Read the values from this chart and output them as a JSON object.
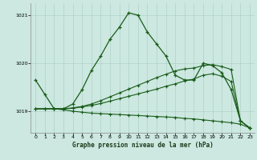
{
  "xlabel": "Graphe pression niveau de la mer (hPa)",
  "ylim": [
    1018.55,
    1021.25
  ],
  "xlim": [
    -0.5,
    23.5
  ],
  "yticks": [
    1019,
    1020,
    1021
  ],
  "xticks": [
    0,
    1,
    2,
    3,
    4,
    5,
    6,
    7,
    8,
    9,
    10,
    11,
    12,
    13,
    14,
    15,
    16,
    17,
    18,
    19,
    20,
    21,
    22,
    23
  ],
  "bg_color": "#cce8e0",
  "line_color": "#1a5c1a",
  "line1": [
    1019.65,
    1019.35,
    1019.05,
    1019.05,
    1019.15,
    1019.45,
    1019.85,
    1020.15,
    1020.5,
    1020.75,
    1021.05,
    1021.0,
    1020.65,
    1020.4,
    1020.15,
    1019.75,
    1019.65,
    1019.65,
    1020.0,
    1019.95,
    1019.8,
    1019.45,
    1018.8,
    1018.65
  ],
  "line2": [
    1019.05,
    1019.05,
    1019.05,
    1019.05,
    1019.07,
    1019.1,
    1019.15,
    1019.22,
    1019.3,
    1019.38,
    1019.46,
    1019.54,
    1019.62,
    1019.7,
    1019.77,
    1019.84,
    1019.88,
    1019.9,
    1019.95,
    1019.97,
    1019.93,
    1019.87,
    1018.8,
    1018.65
  ],
  "line3": [
    1019.05,
    1019.05,
    1019.05,
    1019.05,
    1019.06,
    1019.09,
    1019.12,
    1019.16,
    1019.21,
    1019.26,
    1019.31,
    1019.36,
    1019.41,
    1019.46,
    1019.52,
    1019.57,
    1019.63,
    1019.67,
    1019.75,
    1019.78,
    1019.73,
    1019.62,
    1018.8,
    1018.65
  ],
  "line4": [
    1019.05,
    1019.05,
    1019.05,
    1019.03,
    1019.0,
    1018.98,
    1018.96,
    1018.95,
    1018.94,
    1018.93,
    1018.92,
    1018.91,
    1018.9,
    1018.89,
    1018.88,
    1018.87,
    1018.85,
    1018.84,
    1018.82,
    1018.8,
    1018.78,
    1018.76,
    1018.73,
    1018.65
  ]
}
